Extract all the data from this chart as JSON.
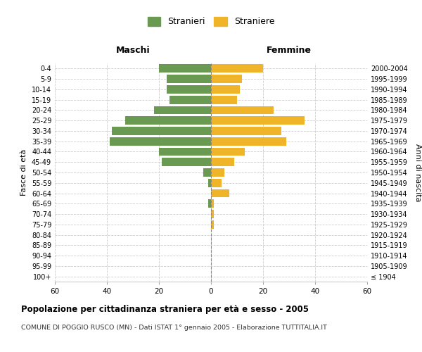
{
  "age_groups": [
    "100+",
    "95-99",
    "90-94",
    "85-89",
    "80-84",
    "75-79",
    "70-74",
    "65-69",
    "60-64",
    "55-59",
    "50-54",
    "45-49",
    "40-44",
    "35-39",
    "30-34",
    "25-29",
    "20-24",
    "15-19",
    "10-14",
    "5-9",
    "0-4"
  ],
  "birth_years": [
    "≤ 1904",
    "1905-1909",
    "1910-1914",
    "1915-1919",
    "1920-1924",
    "1925-1929",
    "1930-1934",
    "1935-1939",
    "1940-1944",
    "1945-1949",
    "1950-1954",
    "1955-1959",
    "1960-1964",
    "1965-1969",
    "1970-1974",
    "1975-1979",
    "1980-1984",
    "1985-1989",
    "1990-1994",
    "1995-1999",
    "2000-2004"
  ],
  "maschi": [
    0,
    0,
    0,
    0,
    0,
    0,
    0,
    1,
    0,
    1,
    3,
    19,
    20,
    39,
    38,
    33,
    22,
    16,
    17,
    17,
    20
  ],
  "femmine": [
    0,
    0,
    0,
    0,
    0,
    1,
    1,
    1,
    7,
    4,
    5,
    9,
    13,
    29,
    27,
    36,
    24,
    10,
    11,
    12,
    20
  ],
  "maschi_color": "#6a9a52",
  "femmine_color": "#f0b429",
  "xlim": 60,
  "title": "Popolazione per cittadinanza straniera per età e sesso - 2005",
  "subtitle": "COMUNE DI POGGIO RUSCO (MN) - Dati ISTAT 1° gennaio 2005 - Elaborazione TUTTITALIA.IT",
  "xlabel_left": "Maschi",
  "xlabel_right": "Femmine",
  "ylabel_left": "Fasce di età",
  "ylabel_right": "Anni di nascita",
  "legend_maschi": "Stranieri",
  "legend_femmine": "Straniere",
  "background_color": "#ffffff",
  "grid_color": "#cccccc",
  "bar_height": 0.8
}
